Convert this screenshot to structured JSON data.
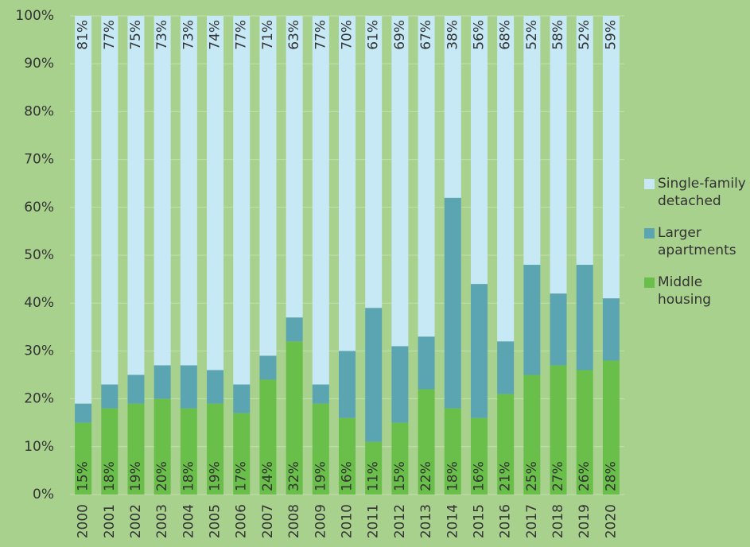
{
  "chart_data": {
    "type": "stacked_bar",
    "categories": [
      "2000",
      "2001",
      "2002",
      "2003",
      "2004",
      "2005",
      "2006",
      "2007",
      "2008",
      "2009",
      "2010",
      "2011",
      "2012",
      "2013",
      "2014",
      "2015",
      "2016",
      "2017",
      "2018",
      "2019",
      "2020"
    ],
    "series": [
      {
        "name": "Middle housing",
        "color": "#6abf4b",
        "values": [
          15,
          18,
          19,
          20,
          18,
          19,
          17,
          24,
          32,
          19,
          16,
          11,
          15,
          22,
          18,
          16,
          21,
          25,
          27,
          26,
          28
        ],
        "value_labels": [
          "15%",
          "18%",
          "19%",
          "20%",
          "18%",
          "19%",
          "17%",
          "24%",
          "32%",
          "19%",
          "16%",
          "11%",
          "15%",
          "22%",
          "18%",
          "16%",
          "21%",
          "25%",
          "27%",
          "26%",
          "28%"
        ]
      },
      {
        "name": "Larger apartments",
        "color": "#5aa5b1",
        "values": [
          4,
          5,
          6,
          7,
          9,
          7,
          6,
          5,
          5,
          4,
          14,
          28,
          16,
          11,
          44,
          28,
          11,
          23,
          15,
          22,
          13
        ]
      },
      {
        "name": "Single-family detached",
        "color": "#c7e9f6",
        "values": [
          81,
          77,
          75,
          73,
          73,
          74,
          77,
          71,
          63,
          77,
          70,
          61,
          69,
          67,
          38,
          56,
          68,
          52,
          58,
          52,
          59
        ],
        "value_labels": [
          "81%",
          "77%",
          "75%",
          "73%",
          "73%",
          "74%",
          "77%",
          "71%",
          "63%",
          "77%",
          "70%",
          "61%",
          "69%",
          "67%",
          "38%",
          "56%",
          "68%",
          "52%",
          "58%",
          "52%",
          "59%"
        ]
      }
    ],
    "ylim": [
      0,
      100
    ],
    "yticks": [
      {
        "value": 0,
        "label": "0%"
      },
      {
        "value": 10,
        "label": "10%"
      },
      {
        "value": 20,
        "label": "20%"
      },
      {
        "value": 30,
        "label": "30%"
      },
      {
        "value": 40,
        "label": "40%"
      },
      {
        "value": 50,
        "label": "50%"
      },
      {
        "value": 60,
        "label": "60%"
      },
      {
        "value": 70,
        "label": "70%"
      },
      {
        "value": 80,
        "label": "80%"
      },
      {
        "value": 90,
        "label": "90%"
      },
      {
        "value": 100,
        "label": "100%"
      }
    ],
    "grid": true,
    "legend": "right"
  }
}
